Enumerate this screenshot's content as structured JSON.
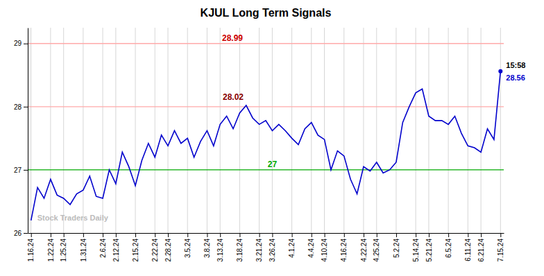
{
  "chart_data": {
    "type": "line",
    "title": "KJUL Long Term Signals",
    "categories": [
      "1.16.24",
      null,
      null,
      "1.22.24",
      null,
      "1.25.24",
      null,
      null,
      "1.31.24",
      null,
      null,
      "2.6.24",
      null,
      "2.12.24",
      null,
      null,
      "2.15.24",
      null,
      null,
      "2.22.24",
      null,
      "2.28.24",
      null,
      null,
      "3.5.24",
      null,
      null,
      "3.8.24",
      null,
      "3.13.24",
      null,
      null,
      "3.18.24",
      null,
      null,
      "3.21.24",
      null,
      "3.26.24",
      null,
      null,
      "4.1.24",
      null,
      null,
      "4.4.24",
      null,
      "4.10.24",
      null,
      null,
      "4.16.24",
      null,
      null,
      "4.22.24",
      null,
      "4.25.24",
      null,
      null,
      "5.2.24",
      null,
      null,
      "5.14.24",
      null,
      "5.21.24",
      null,
      null,
      "6.5.24",
      null,
      null,
      "6.11.24",
      null,
      "6.21.24",
      null,
      null,
      "7.15.24"
    ],
    "values": [
      26.2,
      26.72,
      26.55,
      26.85,
      26.6,
      26.55,
      26.45,
      26.62,
      26.68,
      26.9,
      26.58,
      26.55,
      27.0,
      26.78,
      27.28,
      27.05,
      26.75,
      27.15,
      27.42,
      27.2,
      27.55,
      27.38,
      27.62,
      27.42,
      27.5,
      27.2,
      27.45,
      27.62,
      27.38,
      27.72,
      27.85,
      27.65,
      27.9,
      28.02,
      27.82,
      27.72,
      27.78,
      27.62,
      27.72,
      27.62,
      27.5,
      27.4,
      27.65,
      27.75,
      27.55,
      27.48,
      27.0,
      27.3,
      27.22,
      26.85,
      26.62,
      27.05,
      26.98,
      27.12,
      26.95,
      27.0,
      27.12,
      27.75,
      28.0,
      28.22,
      28.28,
      27.85,
      27.78,
      27.78,
      27.72,
      27.85,
      27.58,
      27.38,
      27.35,
      27.28,
      27.65,
      27.48,
      28.56
    ],
    "color": "#0000cc",
    "ylim": [
      26.0,
      29.25
    ],
    "yticks": [
      26,
      27,
      28,
      29
    ],
    "grid": "x",
    "reference_lines": [
      {
        "y": 29.0,
        "color": "#ffaaaa"
      },
      {
        "y": 28.0,
        "color": "#ffaaaa"
      },
      {
        "y": 27.0,
        "color": "#00aa00"
      }
    ],
    "annotations": [
      {
        "text": "28.99",
        "color": "#cc0000"
      },
      {
        "text": "28.02",
        "color": "#880000"
      },
      {
        "text": "27",
        "color": "#00aa00"
      },
      {
        "text": "15:58",
        "color": "#000000"
      },
      {
        "text": "28.56",
        "color": "#0000cc"
      },
      {
        "text": "Stock Traders Daily",
        "color": "#bbbbbb"
      }
    ]
  }
}
